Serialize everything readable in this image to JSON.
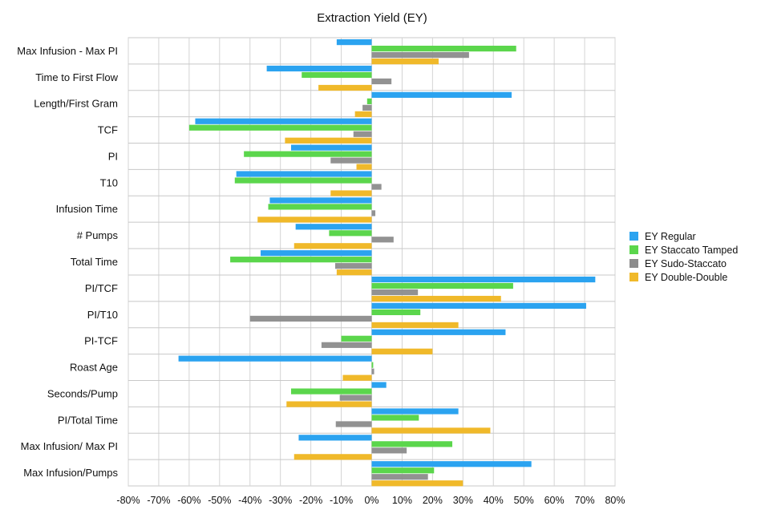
{
  "chart_data": {
    "type": "bar",
    "orientation": "horizontal",
    "title": "Extraction Yield (EY)",
    "xlabel": "",
    "ylabel": "",
    "xlim": [
      -0.8,
      0.8
    ],
    "xticks": [
      -0.8,
      -0.7,
      -0.6,
      -0.5,
      -0.4,
      -0.3,
      -0.2,
      -0.1,
      0,
      0.1,
      0.2,
      0.3,
      0.4,
      0.5,
      0.6,
      0.7,
      0.8
    ],
    "xtick_labels": [
      "-80%",
      "-70%",
      "-60%",
      "-50%",
      "-40%",
      "-30%",
      "-20%",
      "-10%",
      "0%",
      "10%",
      "20%",
      "30%",
      "40%",
      "50%",
      "60%",
      "70%",
      "80%"
    ],
    "grid": true,
    "legend_position": "right",
    "categories": [
      "Max Infusion - Max PI",
      "Time to First Flow",
      "Length/First Gram",
      "TCF",
      "PI",
      "T10",
      "Infusion Time",
      "# Pumps",
      "Total Time",
      "PI/TCF",
      "PI/T10",
      "PI-TCF",
      "Roast Age",
      "Seconds/Pump",
      "PI/Total Time",
      "Max Infusion/ Max PI",
      "Max Infusion/Pumps"
    ],
    "series": [
      {
        "name": "EY Regular",
        "color": "#2ba3f0",
        "values": [
          -0.115,
          -0.345,
          0.46,
          -0.58,
          -0.265,
          -0.445,
          -0.335,
          -0.25,
          -0.365,
          0.735,
          0.705,
          0.44,
          -0.635,
          0.048,
          0.285,
          -0.24,
          0.525
        ]
      },
      {
        "name": "EY Staccato Tamped",
        "color": "#5bd64c",
        "values": [
          0.475,
          -0.23,
          -0.015,
          -0.6,
          -0.42,
          -0.45,
          -0.34,
          -0.14,
          -0.465,
          0.465,
          0.16,
          -0.1,
          0.005,
          -0.265,
          0.155,
          0.265,
          0.205
        ]
      },
      {
        "name": "EY Sudo-Staccato",
        "color": "#8c8c8c",
        "values": [
          0.32,
          0.065,
          -0.03,
          -0.06,
          -0.135,
          0.032,
          0.012,
          0.072,
          -0.12,
          0.152,
          -0.4,
          -0.165,
          0.008,
          -0.105,
          -0.118,
          0.115,
          0.185
        ]
      },
      {
        "name": "EY Double-Double",
        "color": "#f0b92a",
        "values": [
          0.22,
          -0.175,
          -0.055,
          -0.285,
          -0.05,
          -0.135,
          -0.375,
          -0.255,
          -0.115,
          0.425,
          0.285,
          0.2,
          -0.095,
          -0.28,
          0.39,
          -0.255,
          0.3
        ]
      }
    ]
  }
}
